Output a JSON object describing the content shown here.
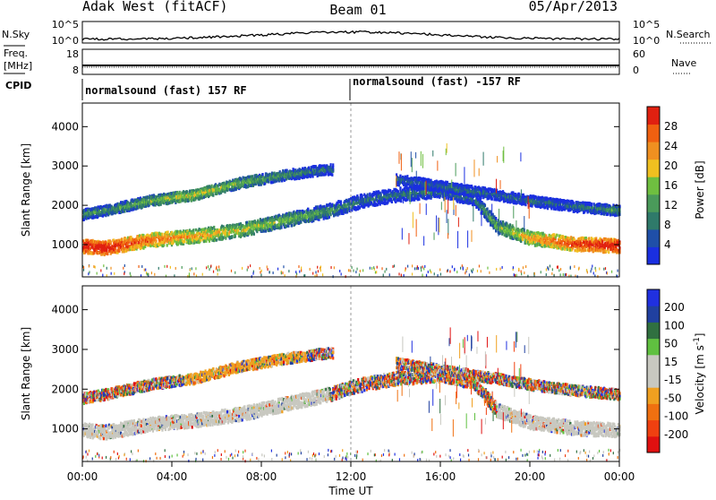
{
  "header": {
    "station": "Adak West (fitACF)",
    "beam": "Beam 01",
    "date": "05/Apr/2013"
  },
  "strip_labels": {
    "nsky": "N.Sky",
    "nsearch": "N.Search",
    "freq": "Freq.",
    "freq_unit": "[MHz]",
    "nave": "Nave",
    "cpid": "CPID",
    "nsky_ticks": [
      "10^5",
      "10^0"
    ],
    "nsearch_ticks": [
      "10^5",
      "10^0"
    ],
    "freq_ticks": [
      "18",
      "8"
    ],
    "nave_ticks": [
      "60",
      "0"
    ]
  },
  "cpid_segments": [
    "normalsound (fast) 157 RF",
    "normalsound (fast) -157 RF"
  ],
  "x_axis": {
    "label": "Time UT",
    "ticks": [
      "00:00",
      "04:00",
      "08:00",
      "12:00",
      "16:00",
      "20:00",
      "00:00"
    ]
  },
  "colors": {
    "power": [
      "#1a2fe0",
      "#1f4fa8",
      "#2f7a6a",
      "#4a9a5a",
      "#6fbf40",
      "#f0c020",
      "#f09020",
      "#f06010",
      "#e02010"
    ],
    "velocity": [
      "#e01010",
      "#f04010",
      "#f07010",
      "#f0a020",
      "#c8c8c0",
      "#c8c8c0",
      "#60c040",
      "#307040",
      "#2040a0",
      "#2030e0"
    ],
    "ground_scatter": "#c8c8c0"
  },
  "chart_data": [
    {
      "type": "heatmap",
      "title": "",
      "xlabel": "Time UT",
      "ylabel": "Slant Range [km]",
      "colorbar_label": "Power [dB]",
      "colorbar_ticks": [
        "28",
        "24",
        "20",
        "16",
        "12",
        "8",
        "4"
      ],
      "ylim": [
        180,
        4600
      ],
      "yticks": [
        "4000",
        "3000",
        "2000",
        "1000"
      ],
      "xlim_hours": [
        0,
        24
      ],
      "bands": [
        {
          "name": "lower",
          "points": [
            [
              0,
              1000,
              9
            ],
            [
              1,
              950,
              9
            ],
            [
              3,
              1150,
              7
            ],
            [
              5,
              1250,
              6
            ],
            [
              7,
              1400,
              5
            ],
            [
              9,
              1650,
              4
            ],
            [
              11,
              1900,
              3
            ],
            [
              12.5,
              2150,
              2
            ],
            [
              14,
              2300,
              2
            ],
            [
              16,
              2400,
              2
            ],
            [
              17.5,
              2200,
              2
            ],
            [
              18.5,
              1500,
              4
            ],
            [
              20,
              1200,
              6
            ],
            [
              22,
              1050,
              8
            ],
            [
              24,
              1000,
              9
            ]
          ]
        },
        {
          "name": "upper",
          "points": [
            [
              0,
              1800,
              3
            ],
            [
              1,
              1900,
              3
            ],
            [
              3,
              2150,
              4
            ],
            [
              5,
              2300,
              5
            ],
            [
              7,
              2600,
              4
            ],
            [
              9,
              2800,
              3
            ],
            [
              11,
              2950,
              2
            ],
            [
              18.5,
              2300,
              2
            ],
            [
              20,
              2150,
              2
            ],
            [
              22,
              2000,
              2
            ],
            [
              24,
              1900,
              3
            ]
          ]
        }
      ]
    },
    {
      "type": "heatmap",
      "title": "",
      "xlabel": "Time UT",
      "ylabel": "Slant Range [km]",
      "colorbar_label": "Velocity [m s^-1]",
      "colorbar_ticks": [
        "200",
        "100",
        "50",
        "15",
        "-15",
        "-50",
        "-100",
        "-200"
      ],
      "ylim": [
        180,
        4600
      ],
      "yticks": [
        "4000",
        "3000",
        "2000",
        "1000"
      ],
      "xlim_hours": [
        0,
        24
      ]
    }
  ]
}
